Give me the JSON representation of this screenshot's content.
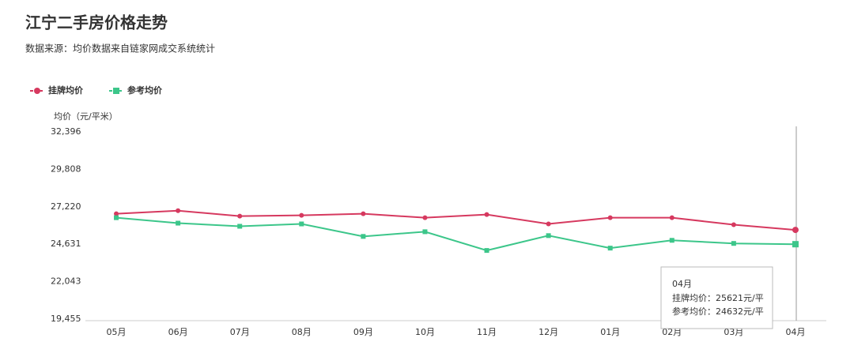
{
  "chart_data": {
    "type": "line",
    "title": "江宁二手房价格走势",
    "subtitle": "数据来源：均价数据来自链家网成交系统统计",
    "y_label": "均价（元/平米）",
    "categories": [
      "05月",
      "06月",
      "07月",
      "08月",
      "09月",
      "10月",
      "11月",
      "12月",
      "01月",
      "02月",
      "03月",
      "04月"
    ],
    "series": [
      {
        "name": "挂牌均价",
        "color": "#d6395f",
        "marker": "circle",
        "values": [
          26735,
          26950,
          26573,
          26627,
          26735,
          26465,
          26681,
          26034,
          26465,
          26465,
          25980,
          25621
        ]
      },
      {
        "name": "参考均价",
        "color": "#3cc68a",
        "marker": "square",
        "values": [
          26465,
          26088,
          25872,
          26034,
          25171,
          25494,
          24200,
          25225,
          24362,
          24901,
          24686,
          24632
        ]
      }
    ],
    "ylim": [
      19455,
      32396
    ],
    "yticks": [
      {
        "value": 19455,
        "label": "19,455"
      },
      {
        "value": 22043,
        "label": "22,043"
      },
      {
        "value": 24631,
        "label": "24,631"
      },
      {
        "value": 27220,
        "label": "27,220"
      },
      {
        "value": 29808,
        "label": "29,808"
      },
      {
        "value": 32396,
        "label": "32,396"
      }
    ],
    "grid": false,
    "legend": "top-left",
    "tooltip": {
      "title": "04月",
      "lines": [
        "挂牌均价：25621元/平",
        "参考均价：24632元/平"
      ]
    }
  }
}
